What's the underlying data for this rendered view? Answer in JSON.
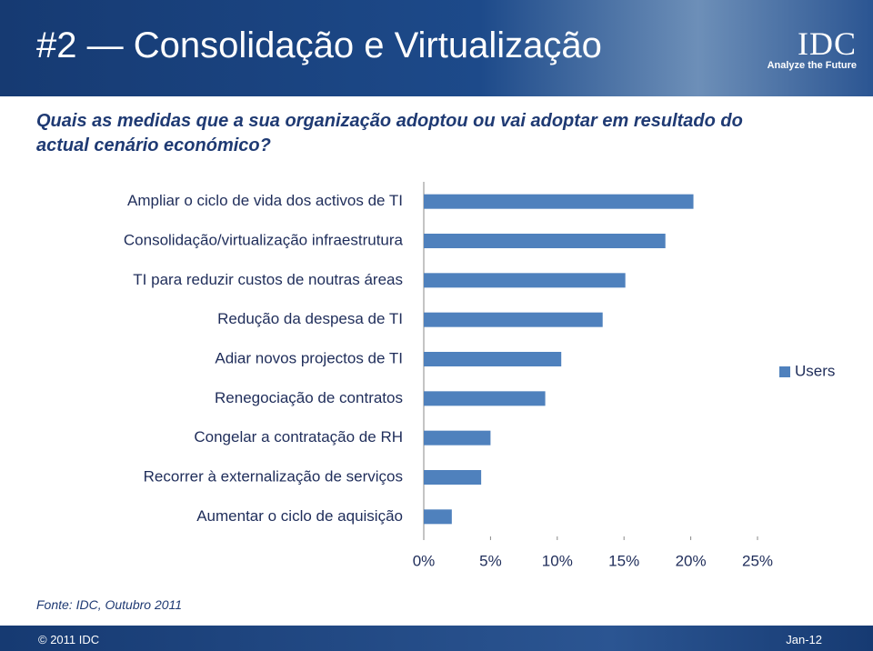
{
  "header": {
    "title": "#2 — Consolidação e Virtualização",
    "logo": "IDC",
    "tagline": "Analyze the Future"
  },
  "question": "Quais as medidas que a sua organização adoptou ou vai adoptar em resultado do actual cenário económico?",
  "chart_data": {
    "type": "hbar",
    "categories": [
      "Ampliar o ciclo de vida dos activos de TI",
      "Consolidação/virtualização infraestrutura",
      "TI para reduzir custos de noutras áreas",
      "Redução da despesa de TI",
      "Adiar novos projectos de TI",
      "Renegociação de contratos",
      "Congelar a contratação de RH",
      "Recorrer à externalização de serviços",
      "Aumentar o ciclo de aquisição"
    ],
    "series": [
      {
        "name": "Users",
        "color": "#4f81bd",
        "values": [
          20.2,
          18.1,
          15.1,
          13.4,
          10.3,
          9.1,
          5.0,
          4.3,
          2.1
        ]
      }
    ],
    "xlim": [
      0,
      25
    ],
    "xticks": [
      {
        "value": 0,
        "label": "0%"
      },
      {
        "value": 5,
        "label": "5%"
      },
      {
        "value": 10,
        "label": "10%"
      },
      {
        "value": 15,
        "label": "15%"
      },
      {
        "value": 20,
        "label": "20%"
      },
      {
        "value": 25,
        "label": "25%"
      }
    ],
    "legend": "right"
  },
  "source": "Fonte: IDC, Outubro 2011",
  "footer": {
    "copyright": "© 2011 IDC",
    "date": "Jan-12"
  }
}
